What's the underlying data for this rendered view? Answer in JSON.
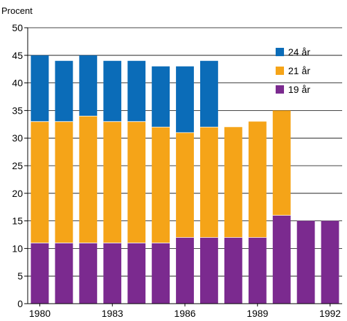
{
  "chart_data": {
    "type": "bar",
    "stacked": true,
    "y_unit_label": "Procent",
    "ylim": [
      0,
      50
    ],
    "y_ticks": [
      0,
      5,
      10,
      15,
      20,
      25,
      30,
      35,
      40,
      45,
      50
    ],
    "grid": "horizontal",
    "categories": [
      "1980",
      "1981",
      "1982",
      "1983",
      "1984",
      "1985",
      "1986",
      "1987",
      "1988",
      "1989",
      "1990",
      "1991",
      "1992"
    ],
    "x_tick_labels": [
      "1980",
      "",
      "",
      "1983",
      "",
      "",
      "1986",
      "",
      "",
      "1989",
      "",
      "",
      "1992"
    ],
    "legend_position": "top-right",
    "series": [
      {
        "name": "19 år",
        "color": "#7b2a8f",
        "values": [
          11,
          11,
          11,
          11,
          11,
          11,
          12,
          12,
          12,
          12,
          16,
          15,
          15
        ]
      },
      {
        "name": "21 år",
        "color": "#f5a418",
        "values": [
          22,
          22,
          23,
          22,
          22,
          21,
          19,
          20,
          20,
          21,
          19,
          0,
          0
        ]
      },
      {
        "name": "24 år",
        "color": "#0b6cb8",
        "values": [
          12,
          11,
          11,
          11,
          11,
          11,
          12,
          12,
          0,
          0,
          0,
          0,
          0
        ]
      }
    ],
    "legend_order": [
      "24 år",
      "21 år",
      "19 år"
    ]
  }
}
